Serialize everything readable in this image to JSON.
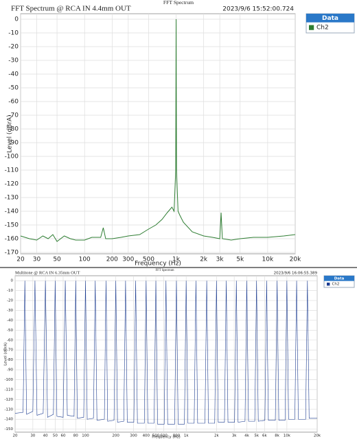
{
  "chart_data": [
    {
      "type": "line",
      "header": "FFT Spectrum",
      "title": "FFT Spectrum @  RCA IN 4.4mm OUT",
      "timestamp": "2023/9/6 15:52:00.724",
      "legend_title": "Data",
      "xlabel": "Frequency (Hz)",
      "ylabel": "Level (dBrA)",
      "xscale": "log",
      "grid": true,
      "xlim": [
        20,
        20000
      ],
      "ylim": [
        -171,
        4
      ],
      "xticks": [
        20,
        30,
        50,
        100,
        200,
        300,
        500,
        {
          "value": 1000,
          "label": "1k"
        },
        {
          "value": 2000,
          "label": "2k"
        },
        {
          "value": 3000,
          "label": "3k"
        },
        {
          "value": 5000,
          "label": "5k"
        },
        {
          "value": 10000,
          "label": "10k"
        },
        {
          "value": 20000,
          "label": "20k"
        }
      ],
      "yticks": [
        0,
        -10,
        -20,
        -30,
        -40,
        -50,
        -60,
        -70,
        -80,
        -90,
        -100,
        -110,
        -120,
        -130,
        -140,
        -150,
        -160,
        -170
      ],
      "series": [
        {
          "name": "Ch2",
          "color": "#2e7d32",
          "x": [
            20,
            25,
            30,
            35,
            40,
            45,
            50,
            60,
            70,
            80,
            100,
            120,
            150,
            160,
            170,
            200,
            250,
            300,
            400,
            500,
            600,
            700,
            800,
            900,
            950,
            990,
            1000,
            1010,
            1050,
            1100,
            1200,
            1500,
            2000,
            2500,
            3000,
            3100,
            3200,
            4000,
            5000,
            7000,
            10000,
            15000,
            20000
          ],
          "values": [
            -158,
            -160,
            -161,
            -158,
            -160,
            -157,
            -162,
            -158,
            -160,
            -161,
            -161,
            -159,
            -159,
            -152,
            -160,
            -160,
            -159,
            -158,
            -157,
            -153,
            -150,
            -146,
            -141,
            -137,
            -140,
            -110,
            0,
            -110,
            -140,
            -143,
            -148,
            -155,
            -158,
            -159,
            -160,
            -141,
            -160,
            -161,
            -160,
            -159,
            -159,
            -158,
            -157
          ]
        }
      ]
    },
    {
      "type": "line",
      "header": "FFT Spectrum",
      "title": "Multitone @ RCA IN 6.35mm OUT",
      "timestamp": "2023/9/6 16:06:55.389",
      "legend_title": "Data",
      "xlabel": "Frequency (Hz)",
      "ylabel": "Level (dBrA)",
      "xscale": "log",
      "grid": true,
      "xlim": [
        20,
        20000
      ],
      "ylim": [
        -153,
        5
      ],
      "xticks": [
        20,
        30,
        40,
        50,
        60,
        80,
        100,
        200,
        300,
        400,
        500,
        600,
        800,
        {
          "value": 1000,
          "label": "1k"
        },
        {
          "value": 2000,
          "label": "2k"
        },
        {
          "value": 3000,
          "label": "3k"
        },
        {
          "value": 4000,
          "label": "4k"
        },
        {
          "value": 5000,
          "label": "5k"
        },
        {
          "value": 6000,
          "label": "6k"
        },
        {
          "value": 8000,
          "label": "8k"
        },
        {
          "value": 10000,
          "label": "10k"
        },
        {
          "value": 20000,
          "label": "20k"
        }
      ],
      "yticks": [
        0,
        -10,
        -20,
        -30,
        -40,
        -50,
        -60,
        -70,
        -80,
        -90,
        -100,
        -110,
        -120,
        -130,
        -140,
        -150
      ],
      "series": [
        {
          "name": "Ch2",
          "color": "#1a3a8f",
          "x": [
            20,
            24,
            25,
            26,
            30,
            31.5,
            33,
            38,
            40,
            42,
            48,
            50,
            52,
            60,
            63,
            66,
            77,
            80,
            83,
            96,
            100,
            104,
            120,
            125,
            130,
            154,
            160,
            166,
            192,
            200,
            208,
            240,
            250,
            260,
            302,
            315,
            328,
            384,
            400,
            416,
            480,
            500,
            520,
            605,
            630,
            655,
            768,
            800,
            832,
            960,
            1000,
            1040,
            1200,
            1250,
            1300,
            1536,
            1600,
            1664,
            1920,
            2000,
            2080,
            2400,
            2500,
            2600,
            3024,
            3150,
            3276,
            3840,
            4000,
            4160,
            4800,
            5000,
            5200,
            6048,
            6300,
            6552,
            7680,
            8000,
            8320,
            9600,
            10000,
            10400,
            12000,
            12500,
            13000,
            15360,
            16000,
            16640,
            20000
          ],
          "values": [
            -134,
            -133,
            0,
            -135,
            -132,
            0,
            -136,
            -134,
            0,
            -138,
            -135,
            0,
            -137,
            -138,
            0,
            -136,
            -137,
            0,
            -139,
            -138,
            0,
            -140,
            -139,
            0,
            -141,
            -140,
            0,
            -142,
            -141,
            0,
            -143,
            -142,
            0,
            -143,
            -143,
            0,
            -144,
            -144,
            0,
            -144,
            -144,
            0,
            -145,
            -145,
            0,
            -145,
            -145,
            0,
            -145,
            -145,
            0,
            -144,
            -144,
            0,
            -144,
            -144,
            0,
            -144,
            -144,
            0,
            -143,
            -143,
            0,
            -143,
            -143,
            0,
            -143,
            -142,
            0,
            -142,
            -142,
            0,
            -142,
            -141,
            0,
            -141,
            -141,
            0,
            -141,
            -141,
            0,
            -140,
            -140,
            0,
            -140,
            -140,
            0,
            -139,
            -139
          ]
        }
      ]
    }
  ]
}
